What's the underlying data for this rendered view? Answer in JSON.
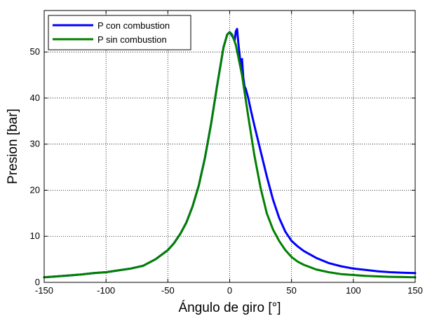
{
  "chart_data": {
    "type": "line",
    "xlabel": "Ángulo de giro [°]",
    "ylabel": "Presion [bar]",
    "xlim": [
      -150,
      150
    ],
    "ylim": [
      0,
      59
    ],
    "xticks": [
      -150,
      -100,
      -50,
      0,
      50,
      100,
      150
    ],
    "yticks": [
      0,
      10,
      20,
      30,
      40,
      50
    ],
    "grid": true,
    "legend_position": "top-left",
    "series": [
      {
        "name": "P con combustion",
        "color": "#0000ff",
        "x": [
          -150,
          -140,
          -130,
          -120,
          -110,
          -100,
          -90,
          -80,
          -70,
          -60,
          -50,
          -45,
          -40,
          -35,
          -30,
          -25,
          -20,
          -15,
          -10,
          -5,
          -2,
          0,
          2,
          4,
          5,
          6,
          7,
          8,
          9,
          10,
          11,
          12,
          13,
          14,
          15,
          17,
          20,
          25,
          30,
          35,
          40,
          45,
          50,
          55,
          60,
          70,
          80,
          90,
          100,
          110,
          120,
          130,
          140,
          150
        ],
        "y": [
          1.1,
          1.3,
          1.5,
          1.7,
          2.0,
          2.2,
          2.6,
          3.0,
          3.6,
          5.0,
          7.0,
          8.5,
          10.5,
          13.0,
          16.5,
          21.0,
          27.0,
          34.5,
          43.0,
          51.0,
          53.8,
          54.3,
          53.5,
          52.5,
          54.5,
          55.0,
          52.0,
          49.5,
          46.5,
          48.5,
          44.5,
          42.5,
          42.0,
          41.0,
          40.0,
          37.5,
          34.0,
          28.5,
          23.0,
          18.0,
          14.0,
          11.0,
          9.0,
          7.8,
          6.8,
          5.3,
          4.2,
          3.5,
          3.0,
          2.7,
          2.4,
          2.2,
          2.1,
          2.0
        ]
      },
      {
        "name": "P sin combustion",
        "color": "#008000",
        "x": [
          -150,
          -140,
          -130,
          -120,
          -110,
          -100,
          -90,
          -80,
          -70,
          -60,
          -50,
          -45,
          -40,
          -35,
          -30,
          -25,
          -20,
          -15,
          -10,
          -5,
          -2,
          0,
          2,
          5,
          10,
          15,
          20,
          25,
          30,
          35,
          40,
          45,
          50,
          55,
          60,
          70,
          80,
          90,
          100,
          110,
          120,
          130,
          140,
          150
        ],
        "y": [
          1.1,
          1.3,
          1.5,
          1.7,
          2.0,
          2.2,
          2.6,
          3.0,
          3.6,
          5.0,
          7.0,
          8.5,
          10.5,
          13.0,
          16.5,
          21.0,
          27.0,
          34.5,
          43.0,
          51.0,
          53.8,
          54.3,
          53.8,
          51.5,
          45.0,
          36.0,
          27.5,
          20.5,
          15.0,
          11.5,
          9.0,
          7.0,
          5.5,
          4.5,
          3.8,
          2.8,
          2.2,
          1.8,
          1.6,
          1.4,
          1.3,
          1.2,
          1.15,
          1.1
        ]
      }
    ]
  }
}
